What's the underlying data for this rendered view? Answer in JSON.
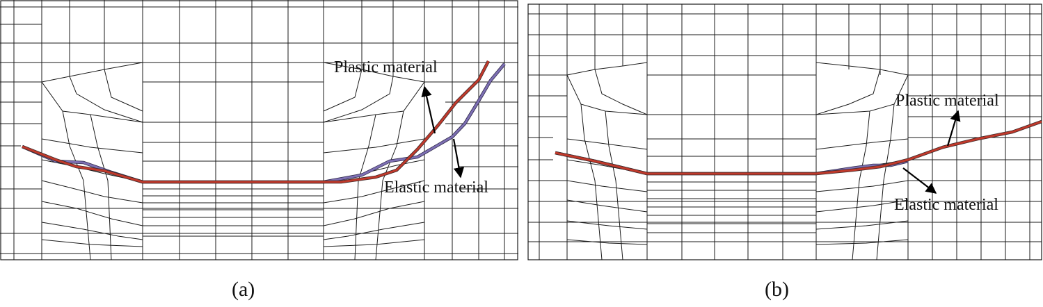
{
  "panels": [
    {
      "id": "a",
      "caption": "(a)",
      "labels": {
        "plastic": "Plastic material",
        "elastic": "Elastic material"
      }
    },
    {
      "id": "b",
      "caption": "(b)",
      "labels": {
        "plastic": "Plastic material",
        "elastic": "Elastic material"
      }
    }
  ],
  "colors": {
    "plastic_curve": "#c0392b",
    "elastic_curve": "#7d6fb3",
    "mesh": "#1a1a1a"
  }
}
